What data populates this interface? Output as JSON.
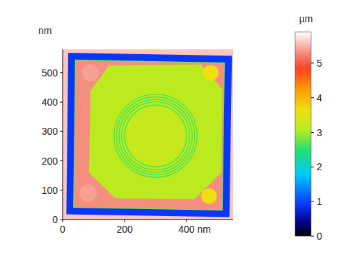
{
  "chart_data": {
    "type": "heatmap",
    "ylabel": "nm",
    "xlim": [
      0,
      550
    ],
    "ylim": [
      0,
      580
    ],
    "xticks": [
      0,
      200,
      {
        "value": 400,
        "label": "400 nm"
      }
    ],
    "yticks": [
      0,
      100,
      200,
      300,
      400,
      500
    ],
    "color_label": "µm",
    "color_range": [
      0,
      5.9
    ],
    "color_ticks": [
      0,
      1,
      2,
      3,
      4,
      5
    ],
    "regions": [
      {
        "shape": "polygon",
        "points": [
          [
            0,
            0
          ],
          [
            550,
            0
          ],
          [
            550,
            580
          ],
          [
            0,
            580
          ]
        ],
        "z": 5.6
      },
      {
        "shape": "polygon",
        "points": [
          [
            12,
            18
          ],
          [
            538,
            8
          ],
          [
            546,
            558
          ],
          [
            18,
            568
          ]
        ],
        "z": 0.9
      },
      {
        "shape": "polygon",
        "points": [
          [
            34,
            40
          ],
          [
            516,
            31
          ],
          [
            523,
            535
          ],
          [
            40,
            545
          ]
        ],
        "z": 2.8
      },
      {
        "shape": "polygon",
        "points": [
          [
            37,
            43
          ],
          [
            513,
            34
          ],
          [
            520,
            532
          ],
          [
            43,
            542
          ]
        ],
        "z": 5.3
      },
      {
        "shape": "polygon",
        "points": [
          [
            150,
            525
          ],
          [
            445,
            528
          ],
          [
            515,
            445
          ],
          [
            512,
            160
          ],
          [
            425,
            70
          ],
          [
            170,
            72
          ],
          [
            85,
            160
          ],
          [
            90,
            440
          ]
        ],
        "z": 3.1
      },
      {
        "shape": "circle",
        "cx": 90,
        "cy": 500,
        "r": 28,
        "z": 5.4
      },
      {
        "shape": "circle",
        "cx": 478,
        "cy": 500,
        "r": 25,
        "z": 3.66
      },
      {
        "shape": "circle",
        "cx": 82,
        "cy": 90,
        "r": 28,
        "z": 5.4
      },
      {
        "shape": "circle",
        "cx": 472,
        "cy": 80,
        "r": 25,
        "z": 3.66
      },
      {
        "shape": "circle",
        "cx": 300,
        "cy": 285,
        "r": 96,
        "z": 3.2
      },
      {
        "shape": "ring",
        "cx": 300,
        "cy": 285,
        "r": 100,
        "z": 2.6
      },
      {
        "shape": "ring",
        "cx": 300,
        "cy": 285,
        "r": 110,
        "z": 2.6
      },
      {
        "shape": "ring",
        "cx": 300,
        "cy": 285,
        "r": 118,
        "z": 2.6
      },
      {
        "shape": "ring",
        "cx": 300,
        "cy": 285,
        "r": 126,
        "z": 2.6
      },
      {
        "shape": "ring",
        "cx": 300,
        "cy": 285,
        "r": 134,
        "z": 2.6
      }
    ]
  }
}
